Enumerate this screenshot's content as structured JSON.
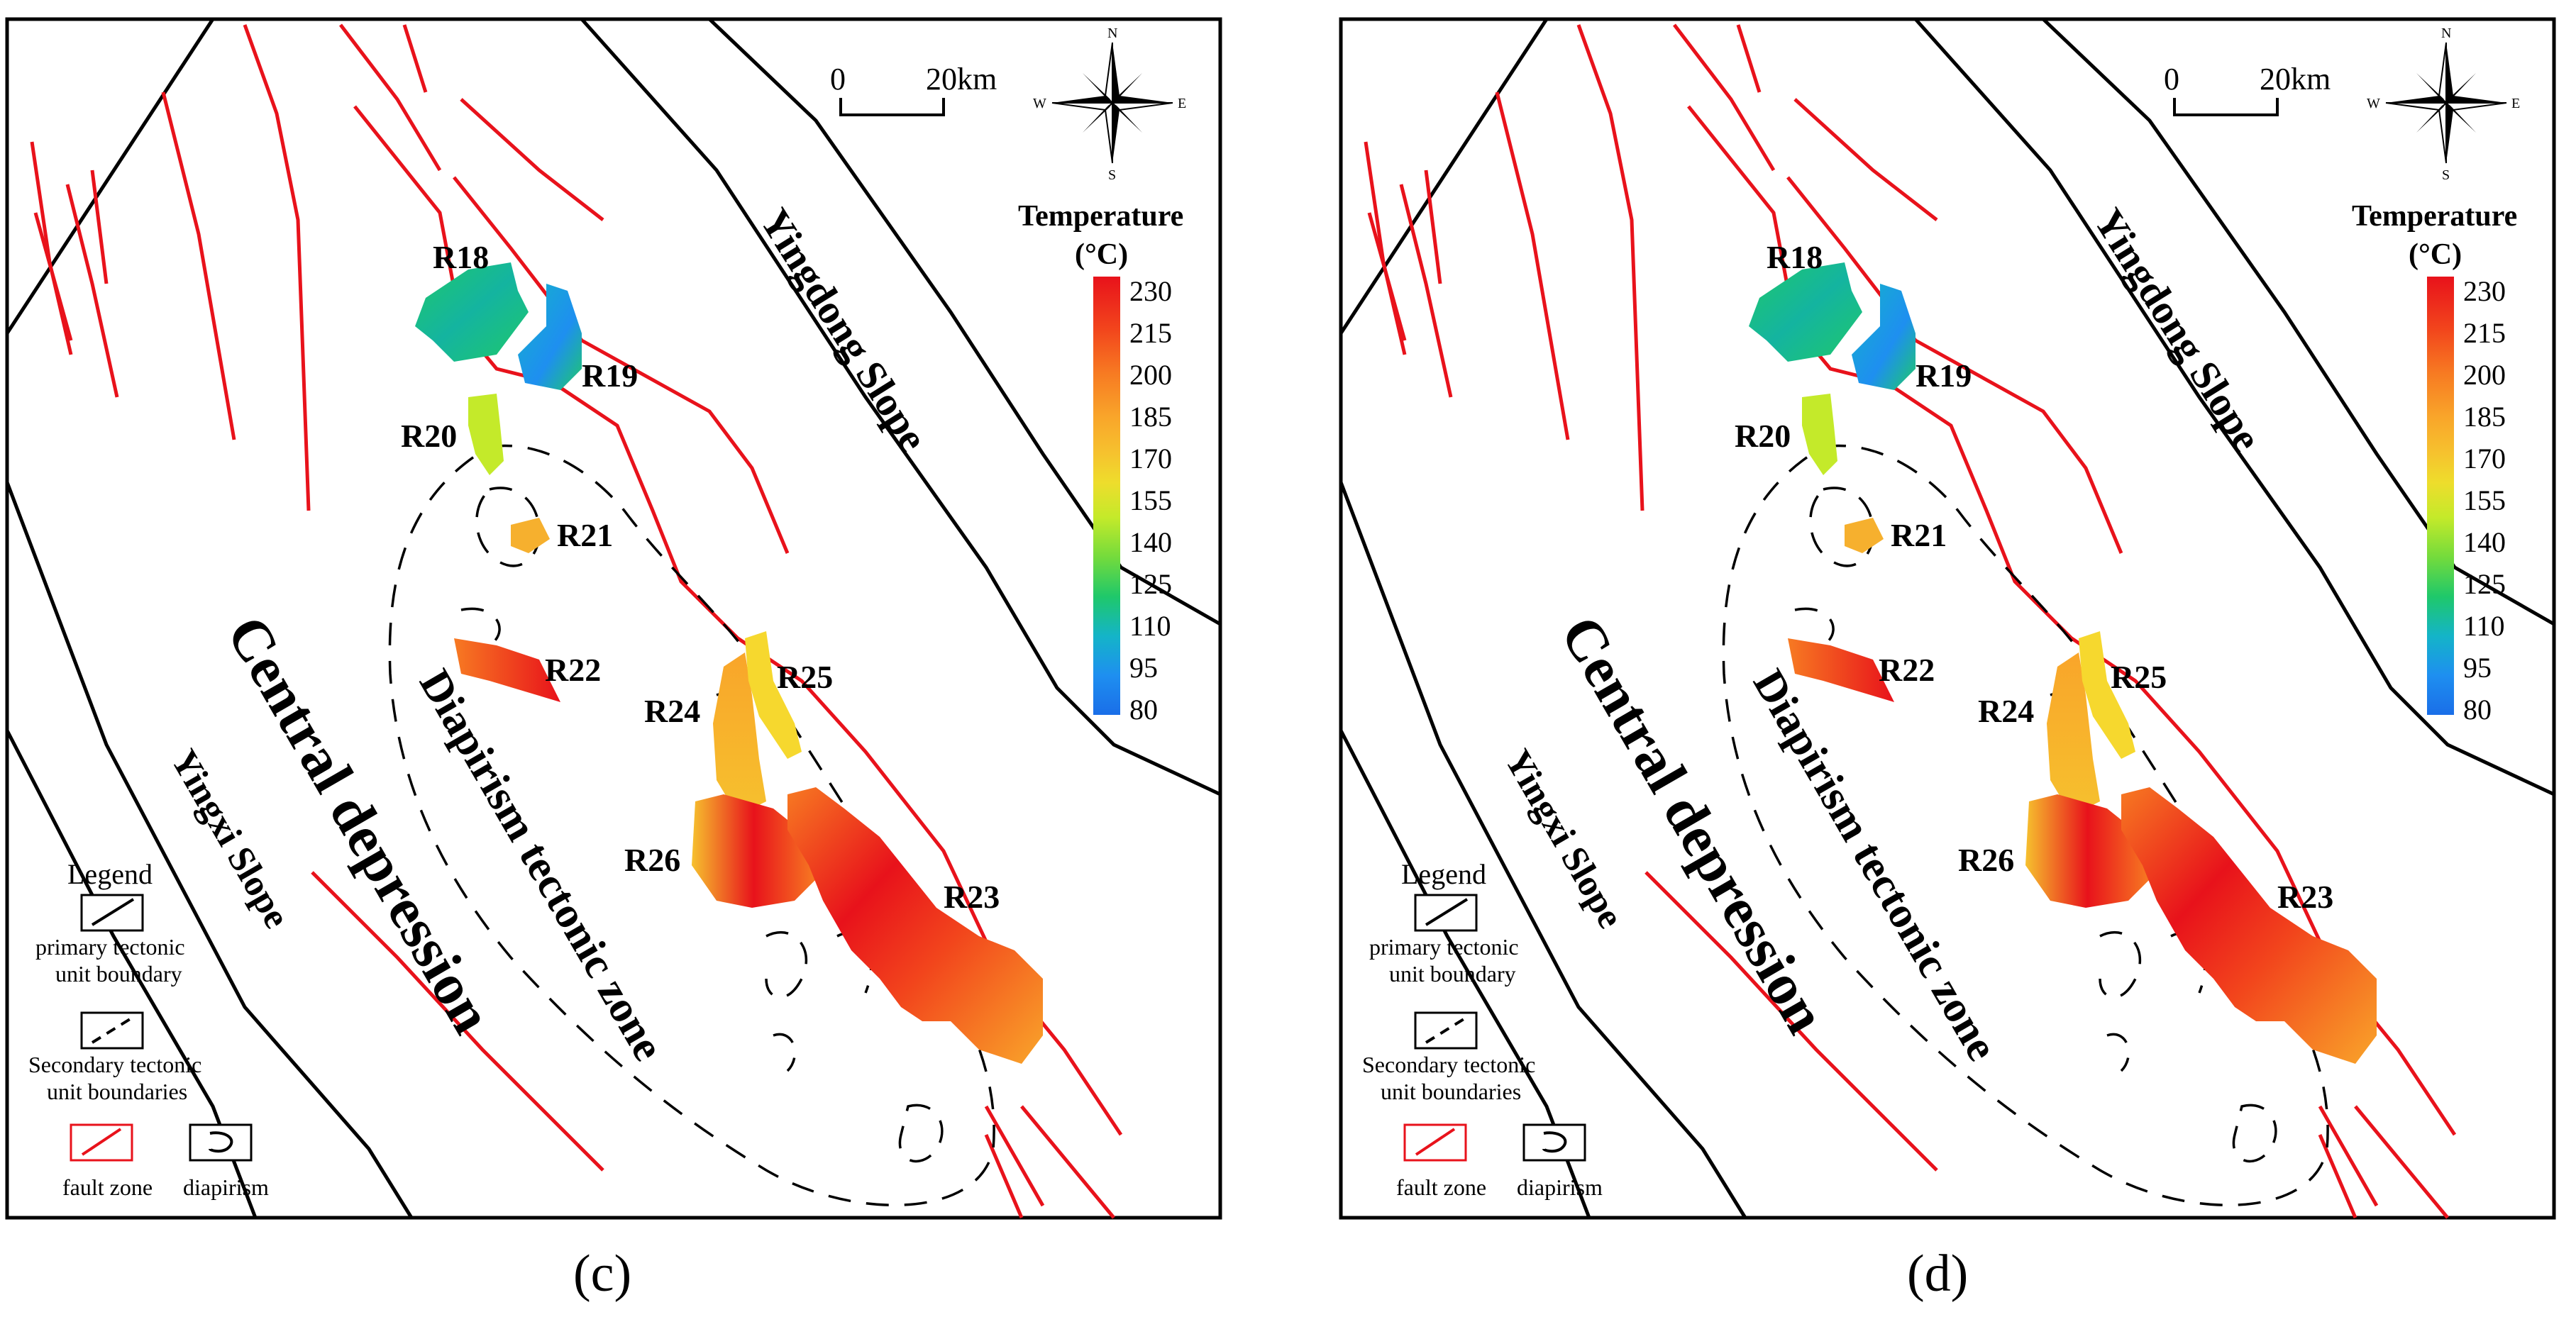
{
  "panels": [
    {
      "letter": "(c)",
      "scale": {
        "zero": "0",
        "distance": "20km"
      },
      "compass": {
        "n": "N",
        "s": "S",
        "e": "E",
        "w": "W"
      },
      "colorbar": {
        "title_line1": "Temperature",
        "title_line2": "(°C)",
        "ticks": [
          "230",
          "215",
          "200",
          "185",
          "170",
          "155",
          "140",
          "125",
          "110",
          "95",
          "80"
        ]
      },
      "regions": {
        "yingdong": "Yingdong Slope",
        "central": "Central depression",
        "diapir": "Diapirism tectonic zone",
        "yingxi": "Yingxi Slope"
      },
      "reservoirs": {
        "r18": "R18",
        "r19": "R19",
        "r20": "R20",
        "r21": "R21",
        "r22": "R22",
        "r23": "R23",
        "r24": "R24",
        "r25": "R25",
        "r26": "R26"
      },
      "legend": {
        "title": "Legend",
        "primary_1": "primary tectonic",
        "primary_2": "unit boundary",
        "secondary_1": "Secondary tectonic",
        "secondary_2": "unit boundaries",
        "fault": "fault zone",
        "diapirism": "diapirism"
      }
    },
    {
      "letter": "(d)",
      "scale": {
        "zero": "0",
        "distance": "20km"
      },
      "compass": {
        "n": "N",
        "s": "S",
        "e": "E",
        "w": "W"
      },
      "colorbar": {
        "title_line1": "Temperature",
        "title_line2": "(°C)",
        "ticks": [
          "230",
          "215",
          "200",
          "185",
          "170",
          "155",
          "140",
          "125",
          "110",
          "95",
          "80"
        ]
      },
      "regions": {
        "yingdong": "Yingdong Slope",
        "central": "Central depression",
        "diapir": "Diapirism tectonic zone",
        "yingxi": "Yingxi Slope"
      },
      "reservoirs": {
        "r18": "R18",
        "r19": "R19",
        "r20": "R20",
        "r21": "R21",
        "r22": "R22",
        "r23": "R23",
        "r24": "R24",
        "r25": "R25",
        "r26": "R26"
      },
      "legend": {
        "title": "Legend",
        "primary_1": "primary tectonic",
        "primary_2": "unit boundary",
        "secondary_1": "Secondary tectonic",
        "secondary_2": "unit boundaries",
        "fault": "fault zone",
        "diapirism": "diapirism"
      }
    }
  ],
  "colors": {
    "fault": "#e8121b",
    "boundary": "#000000",
    "temp_scale": [
      "#e8121b",
      "#f2451c",
      "#f77a22",
      "#f9a52a",
      "#f6c12e",
      "#eedd2c",
      "#c4ea2a",
      "#74db3c",
      "#1fc86a",
      "#14b4c8",
      "#1e8ff0",
      "#1a6ee8"
    ]
  }
}
